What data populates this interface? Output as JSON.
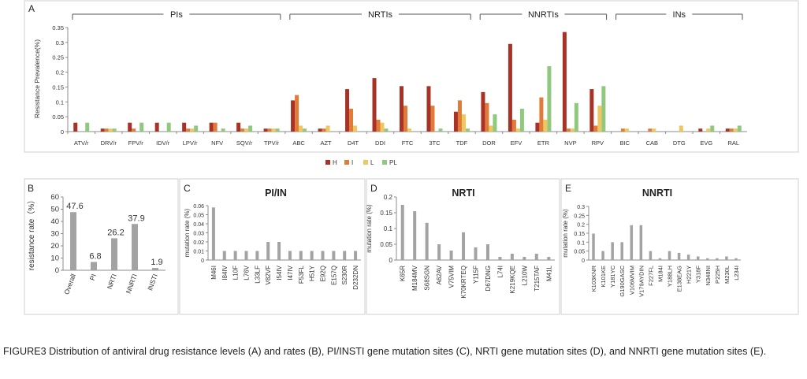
{
  "caption": "FIGURE3 Distribution of antiviral drug resistance levels (A) and rates (B), PI/INSTI gene mutation sites (C), NRTI gene mutation sites (D), and NNRTI gene mutation sites (E).",
  "colors": {
    "H": "#a93226",
    "I": "#e07b39",
    "L": "#f0c75e",
    "PL": "#90c97e",
    "gray": "#a3a3a3",
    "axis": "#8c8c8c",
    "frame": "#cfcfcf"
  },
  "chart_data": [
    {
      "panel": "A",
      "type": "bar",
      "title": "",
      "ylabel": "Resistance Prevalence(%)",
      "ylim": [
        0,
        0.35
      ],
      "yticks": [
        "0",
        "0.05",
        "0.1",
        "0.15",
        "0.2",
        "0.25",
        "0.3",
        "0.35"
      ],
      "groups": [
        {
          "label": "PIs",
          "start": 0,
          "end": 7
        },
        {
          "label": "NRTIs",
          "start": 8,
          "end": 14
        },
        {
          "label": "NNRTIs",
          "start": 15,
          "end": 19
        },
        {
          "label": "INs",
          "start": 20,
          "end": 24
        }
      ],
      "categories": [
        "ATV/r",
        "DRV/r",
        "FPV/r",
        "IDV/r",
        "LPV/r",
        "NFV",
        "SQV/r",
        "TPV/r",
        "ABC",
        "AZT",
        "D4T",
        "DDI",
        "FTC",
        "3TC",
        "TDF",
        "DOR",
        "EFV",
        "ETR",
        "NVP",
        "RPV",
        "BIC",
        "CAB",
        "DTG",
        "EVG",
        "RAL"
      ],
      "legend": [
        "H",
        "I",
        "L",
        "PL"
      ],
      "series": [
        {
          "name": "H",
          "values": [
            0.03,
            0.01,
            0.03,
            0.03,
            0.03,
            0.03,
            0.03,
            0.01,
            0.105,
            0.01,
            0.143,
            0.18,
            0.153,
            0.153,
            0.067,
            0.133,
            0.295,
            0.03,
            0.335,
            0.143,
            0,
            0,
            0,
            0.01,
            0.01
          ]
        },
        {
          "name": "I",
          "values": [
            0,
            0.01,
            0.01,
            0,
            0.01,
            0.03,
            0.01,
            0.01,
            0.123,
            0.01,
            0.077,
            0.04,
            0.087,
            0.087,
            0.105,
            0.096,
            0.04,
            0.115,
            0.01,
            0.02,
            0.01,
            0.01,
            0,
            0,
            0.01
          ]
        },
        {
          "name": "L",
          "values": [
            0,
            0.01,
            0,
            0,
            0.01,
            0,
            0.01,
            0.01,
            0.02,
            0.02,
            0.02,
            0.03,
            0.01,
            0,
            0.058,
            0.02,
            0.01,
            0.04,
            0.01,
            0.087,
            0.01,
            0.01,
            0.02,
            0.01,
            0.01
          ]
        },
        {
          "name": "PL",
          "values": [
            0.03,
            0.01,
            0.03,
            0.03,
            0.02,
            0.01,
            0.02,
            0.01,
            0.01,
            0,
            0,
            0.01,
            0,
            0.01,
            0.01,
            0.058,
            0.077,
            0.22,
            0.096,
            0.153,
            0,
            0,
            0,
            0.02,
            0.02
          ]
        }
      ]
    },
    {
      "panel": "B",
      "type": "bar",
      "title": "",
      "ylabel": "resistance rate（%）",
      "ylim": [
        0,
        60
      ],
      "yticks": [
        "0",
        "10",
        "20",
        "30",
        "40",
        "50",
        "60"
      ],
      "categories": [
        "Overall",
        "PI",
        "NRTI",
        "NNRTI",
        "INSTI"
      ],
      "values": [
        47.6,
        6.8,
        26.2,
        37.9,
        1.9
      ],
      "data_labels": [
        "47.6",
        "6.8",
        "26.2",
        "37.9",
        "1.9"
      ]
    },
    {
      "panel": "C",
      "type": "bar",
      "title": "PI/IN",
      "ylabel": "mutation rate (%)",
      "ylim": [
        0,
        0.06
      ],
      "yticks": [
        "0",
        "0.01",
        "0.02",
        "0.03",
        "0.04",
        "0.05",
        "0.06"
      ],
      "categories": [
        "M46I",
        "I84IV",
        "L10F",
        "L76V",
        "L33LF",
        "V82VF",
        "I54IV",
        "I47IV",
        "F53FL",
        "H51Y",
        "E92Q",
        "E157Q",
        "S230R",
        "D232DN"
      ],
      "values": [
        0.058,
        0.01,
        0.01,
        0.01,
        0.01,
        0.02,
        0.02,
        0.01,
        0.01,
        0.01,
        0.01,
        0.01,
        0.01,
        0.01
      ]
    },
    {
      "panel": "D",
      "type": "bar",
      "title": "NRTI",
      "ylabel": "mutation rate (%)",
      "ylim": [
        0,
        0.2
      ],
      "yticks": [
        "0",
        "0.05",
        "0.1",
        "0.15",
        "0.2"
      ],
      "categories": [
        "K65R",
        "M184MV",
        "S68SGN",
        "A62AV",
        "V75VIM",
        "K70KRTEQ",
        "Y115F",
        "D67DNG",
        "L74I",
        "K219KQE",
        "L210W",
        "T215TAF",
        "M41L"
      ],
      "values": [
        0.175,
        0.155,
        0.118,
        0.05,
        0.03,
        0.088,
        0.04,
        0.05,
        0.01,
        0.02,
        0.01,
        0.02,
        0.01
      ]
    },
    {
      "panel": "E",
      "type": "bar",
      "title": "NNRTI",
      "ylabel": "mutation rate (%)",
      "ylim": [
        0,
        0.3
      ],
      "yticks": [
        "0",
        "0.05",
        "0.1",
        "0.15",
        "0.2",
        "0.25",
        "0.3"
      ],
      "categories": [
        "K103KNR",
        "K101KE",
        "Y181YC",
        "G190GASC",
        "V106MVIM",
        "V179AYDIN",
        "F227FL",
        "M184I",
        "Y188LH",
        "E138EAG",
        "H221Y",
        "Y318F",
        "N348NI",
        "P225H",
        "M230L",
        "L234I"
      ],
      "values": [
        0.148,
        0.05,
        0.1,
        0.1,
        0.195,
        0.195,
        0.05,
        0.01,
        0.05,
        0.04,
        0.03,
        0.02,
        0.01,
        0.01,
        0.02,
        0.01
      ]
    }
  ]
}
